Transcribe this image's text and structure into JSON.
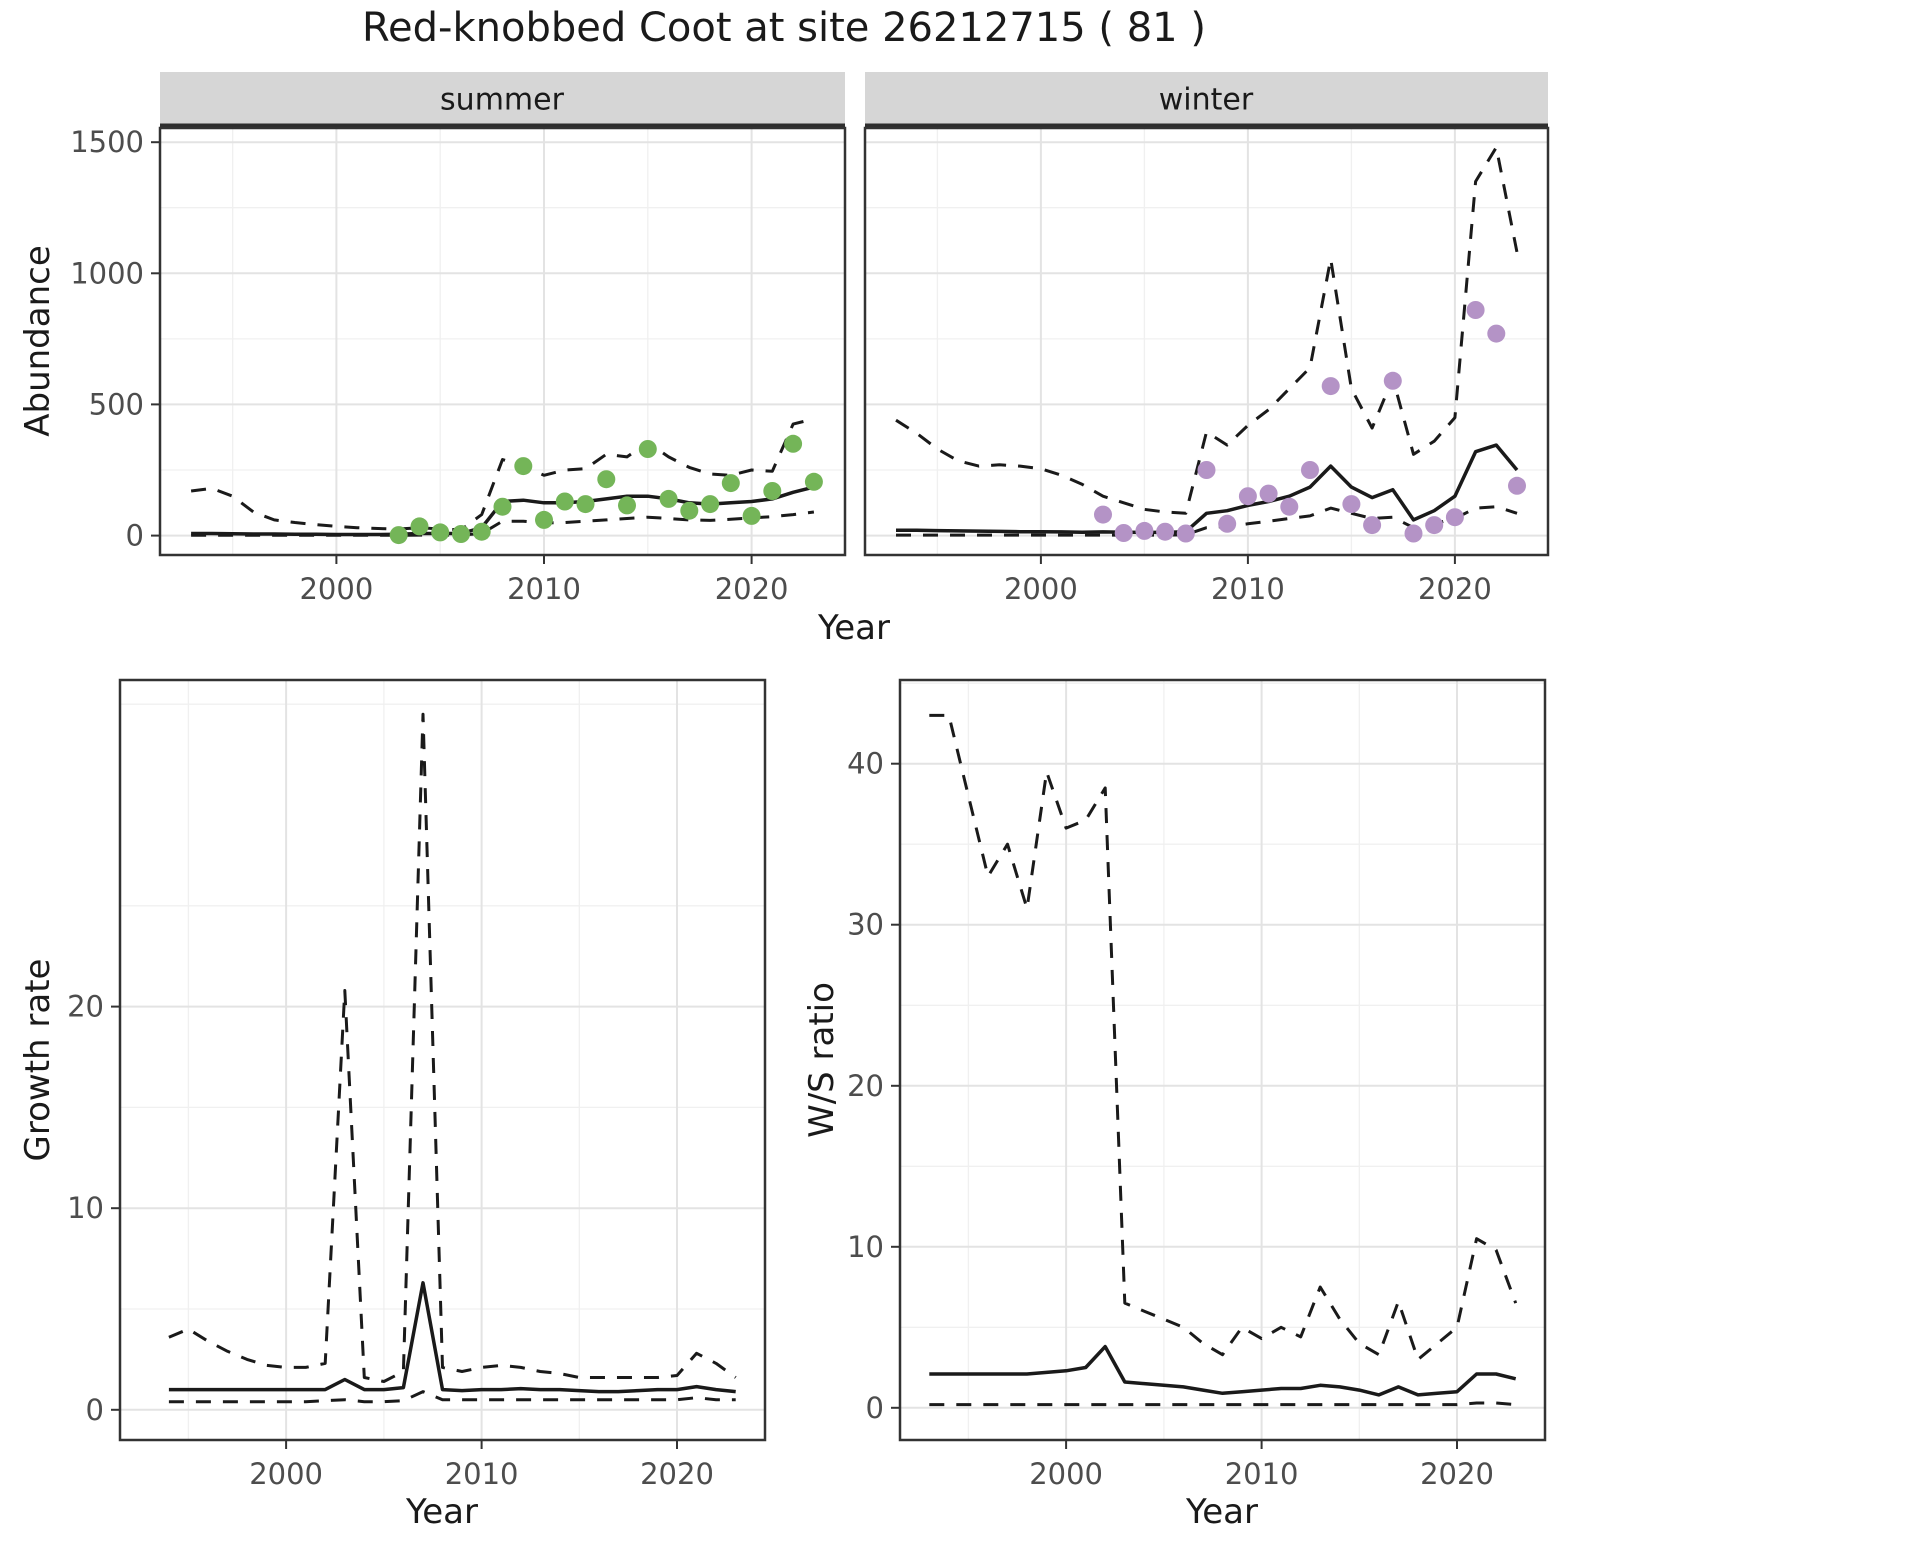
{
  "title": "Red-knobbed Coot at site 26212715 ( 81 )",
  "axis_labels": {
    "abundance": "Abundance",
    "year": "Year",
    "growth_rate": "Growth rate",
    "ws_ratio": "W/S ratio"
  },
  "colors": {
    "summer_points": "#74b558",
    "winter_points": "#b493c6",
    "line": "#1a1a1a",
    "grid_major": "#e3e3e3",
    "grid_minor": "#f0f0f0",
    "strip_fill": "#d6d6d6",
    "panel_border": "#333333"
  },
  "chart_data": [
    {
      "id": "abundance_summer",
      "type": "line",
      "facet_label": "summer",
      "xlabel": "Year",
      "ylabel": "Abundance",
      "xlim": [
        1991.5,
        2024.5
      ],
      "ylim": [
        -74,
        1554
      ],
      "xticks": [
        2000,
        2010,
        2020
      ],
      "yticks": [
        0,
        500,
        1000,
        1500
      ],
      "grid": true,
      "x": [
        1993,
        1994,
        1995,
        1996,
        1997,
        1998,
        1999,
        2000,
        2001,
        2002,
        2003,
        2004,
        2005,
        2006,
        2007,
        2008,
        2009,
        2010,
        2011,
        2012,
        2013,
        2014,
        2015,
        2016,
        2017,
        2018,
        2019,
        2020,
        2021,
        2022,
        2023
      ],
      "series": [
        {
          "name": "fit",
          "style": "solid",
          "values": [
            8,
            8,
            7,
            6,
            6,
            5,
            5,
            4,
            4,
            4,
            5,
            8,
            8,
            8,
            30,
            130,
            135,
            125,
            125,
            130,
            140,
            150,
            150,
            140,
            125,
            120,
            125,
            130,
            140,
            165,
            185
          ]
        },
        {
          "name": "upper_95ci",
          "style": "dashed",
          "values": [
            170,
            180,
            150,
            90,
            60,
            50,
            42,
            35,
            30,
            27,
            25,
            30,
            25,
            22,
            80,
            290,
            265,
            230,
            250,
            255,
            310,
            300,
            355,
            300,
            260,
            235,
            230,
            250,
            245,
            425,
            445
          ]
        },
        {
          "name": "lower_95ci",
          "style": "dashed",
          "values": [
            1,
            1,
            1,
            1,
            1,
            1,
            1,
            1,
            1,
            1,
            1,
            2,
            2,
            2,
            8,
            55,
            55,
            48,
            50,
            55,
            60,
            65,
            70,
            65,
            60,
            58,
            62,
            68,
            72,
            80,
            90
          ]
        }
      ],
      "points": {
        "name": "observed_counts",
        "color_key": "summer_points",
        "x": [
          2003,
          2004,
          2005,
          2006,
          2007,
          2008,
          2009,
          2010,
          2011,
          2012,
          2013,
          2014,
          2015,
          2016,
          2017,
          2018,
          2019,
          2020,
          2021,
          2022,
          2023
        ],
        "y": [
          2,
          35,
          12,
          6,
          15,
          110,
          265,
          60,
          130,
          120,
          215,
          115,
          330,
          140,
          95,
          120,
          200,
          75,
          170,
          350,
          205
        ]
      }
    },
    {
      "id": "abundance_winter",
      "type": "line",
      "facet_label": "winter",
      "xlabel": "Year",
      "ylabel": "Abundance",
      "xlim": [
        1991.5,
        2024.5
      ],
      "ylim": [
        -74,
        1554
      ],
      "xticks": [
        2000,
        2010,
        2020
      ],
      "yticks": [
        0,
        500,
        1000,
        1500
      ],
      "grid": true,
      "x": [
        1993,
        1994,
        1995,
        1996,
        1997,
        1998,
        1999,
        2000,
        2001,
        2002,
        2003,
        2004,
        2005,
        2006,
        2007,
        2008,
        2009,
        2010,
        2011,
        2012,
        2013,
        2014,
        2015,
        2016,
        2017,
        2018,
        2019,
        2020,
        2021,
        2022,
        2023
      ],
      "series": [
        {
          "name": "fit",
          "style": "solid",
          "values": [
            20,
            20,
            19,
            18,
            17,
            16,
            15,
            15,
            14,
            13,
            14,
            13,
            12,
            12,
            15,
            85,
            95,
            115,
            130,
            150,
            185,
            265,
            185,
            145,
            175,
            60,
            95,
            150,
            320,
            345,
            250
          ]
        },
        {
          "name": "upper_95ci",
          "style": "dashed",
          "values": [
            440,
            390,
            330,
            285,
            265,
            270,
            265,
            255,
            230,
            195,
            150,
            125,
            100,
            90,
            85,
            395,
            345,
            420,
            480,
            560,
            640,
            1055,
            560,
            410,
            600,
            310,
            360,
            450,
            1350,
            1480,
            1080
          ]
        },
        {
          "name": "lower_95ci",
          "style": "dashed",
          "values": [
            2,
            2,
            2,
            2,
            2,
            2,
            2,
            2,
            2,
            2,
            2,
            2,
            2,
            2,
            3,
            30,
            35,
            45,
            55,
            65,
            75,
            105,
            85,
            65,
            70,
            30,
            45,
            65,
            105,
            110,
            85
          ]
        }
      ],
      "points": {
        "name": "observed_counts",
        "color_key": "winter_points",
        "x": [
          2003,
          2004,
          2005,
          2006,
          2007,
          2008,
          2009,
          2010,
          2011,
          2012,
          2013,
          2014,
          2015,
          2016,
          2017,
          2018,
          2019,
          2020,
          2021,
          2022,
          2023
        ],
        "y": [
          80,
          10,
          18,
          15,
          8,
          250,
          45,
          150,
          160,
          110,
          250,
          570,
          120,
          40,
          590,
          8,
          40,
          70,
          860,
          770,
          190
        ]
      }
    },
    {
      "id": "growth_rate",
      "type": "line",
      "facet_label": "",
      "xlabel": "Year",
      "ylabel": "Growth rate",
      "xlim": [
        1991.5,
        2024.5
      ],
      "ylim": [
        -1.5,
        36.2
      ],
      "xticks": [
        2000,
        2010,
        2020
      ],
      "yticks": [
        0,
        10,
        20
      ],
      "grid": true,
      "x": [
        1994,
        1995,
        1996,
        1997,
        1998,
        1999,
        2000,
        2001,
        2002,
        2003,
        2004,
        2005,
        2006,
        2007,
        2008,
        2009,
        2010,
        2011,
        2012,
        2013,
        2014,
        2015,
        2016,
        2017,
        2018,
        2019,
        2020,
        2021,
        2022,
        2023
      ],
      "series": [
        {
          "name": "fit",
          "style": "solid",
          "values": [
            1.0,
            1.0,
            1.0,
            1.0,
            1.0,
            1.0,
            1.0,
            1.0,
            1.0,
            1.5,
            1.0,
            1.0,
            1.1,
            6.3,
            1.0,
            0.95,
            1.0,
            1.0,
            1.05,
            1.0,
            1.0,
            0.95,
            0.9,
            0.9,
            0.95,
            1.0,
            1.0,
            1.15,
            1.0,
            0.9
          ]
        },
        {
          "name": "upper_95ci",
          "style": "dashed",
          "values": [
            3.6,
            4.0,
            3.4,
            2.9,
            2.5,
            2.2,
            2.1,
            2.1,
            2.3,
            20.8,
            1.6,
            1.4,
            1.9,
            34.5,
            2.1,
            1.9,
            2.1,
            2.2,
            2.1,
            1.9,
            1.8,
            1.6,
            1.6,
            1.6,
            1.6,
            1.6,
            1.7,
            2.8,
            2.3,
            1.6
          ]
        },
        {
          "name": "lower_95ci",
          "style": "dashed",
          "values": [
            0.4,
            0.4,
            0.4,
            0.4,
            0.4,
            0.4,
            0.4,
            0.4,
            0.45,
            0.5,
            0.4,
            0.4,
            0.45,
            0.9,
            0.5,
            0.5,
            0.5,
            0.5,
            0.5,
            0.5,
            0.5,
            0.5,
            0.5,
            0.5,
            0.5,
            0.5,
            0.5,
            0.6,
            0.5,
            0.5
          ]
        }
      ]
    },
    {
      "id": "ws_ratio",
      "type": "line",
      "facet_label": "",
      "xlabel": "Year",
      "ylabel": "W/S ratio",
      "xlim": [
        1991.5,
        2024.5
      ],
      "ylim": [
        -2,
        45.2
      ],
      "xticks": [
        2000,
        2010,
        2020
      ],
      "yticks": [
        0,
        10,
        20,
        30,
        40
      ],
      "grid": true,
      "x": [
        1993,
        1994,
        1995,
        1996,
        1997,
        1998,
        1999,
        2000,
        2001,
        2002,
        2003,
        2004,
        2005,
        2006,
        2007,
        2008,
        2009,
        2010,
        2011,
        2012,
        2013,
        2014,
        2015,
        2016,
        2017,
        2018,
        2019,
        2020,
        2021,
        2022,
        2023
      ],
      "series": [
        {
          "name": "fit",
          "style": "solid",
          "values": [
            2.1,
            2.1,
            2.1,
            2.1,
            2.1,
            2.1,
            2.2,
            2.3,
            2.5,
            3.8,
            1.6,
            1.5,
            1.4,
            1.3,
            1.1,
            0.9,
            1.0,
            1.1,
            1.2,
            1.2,
            1.4,
            1.3,
            1.1,
            0.8,
            1.3,
            0.8,
            0.9,
            1.0,
            2.1,
            2.1,
            1.8
          ]
        },
        {
          "name": "upper_95ci",
          "style": "dashed",
          "values": [
            43,
            43,
            38,
            33,
            35,
            31,
            39.5,
            36,
            36.5,
            38.5,
            6.5,
            6,
            5.5,
            5,
            4,
            3.3,
            5,
            4.3,
            5,
            4.4,
            7.5,
            5.5,
            4,
            3.3,
            6.6,
            3,
            4,
            5,
            10.5,
            9.8,
            6.5
          ]
        },
        {
          "name": "lower_95ci",
          "style": "dashed",
          "values": [
            0.2,
            0.2,
            0.2,
            0.2,
            0.2,
            0.2,
            0.2,
            0.2,
            0.2,
            0.2,
            0.2,
            0.2,
            0.2,
            0.2,
            0.2,
            0.2,
            0.2,
            0.2,
            0.2,
            0.2,
            0.2,
            0.2,
            0.2,
            0.2,
            0.2,
            0.2,
            0.2,
            0.2,
            0.3,
            0.3,
            0.2
          ]
        }
      ]
    }
  ]
}
